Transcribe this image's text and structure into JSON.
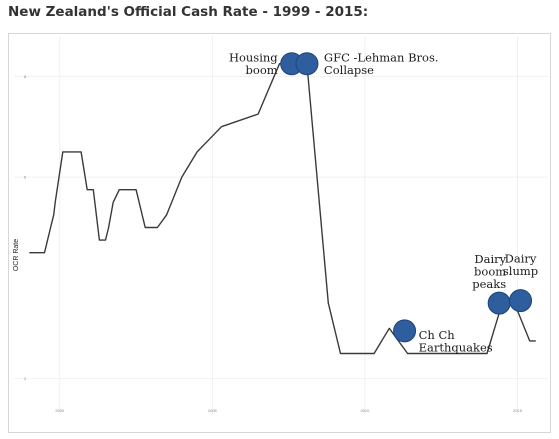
{
  "page": {
    "title": "New Zealand's Official Cash Rate - 1999 - 2015:"
  },
  "chart_data": {
    "type": "line",
    "title": "New Zealand's Official Cash Rate - 1999 - 2015:",
    "xlabel": "",
    "ylabel": "OCR Rate",
    "x_ticks": [
      {
        "value": 2000,
        "label": "2000"
      },
      {
        "value": 2005,
        "label": "2005"
      },
      {
        "value": 2010,
        "label": "2010"
      },
      {
        "value": 2015,
        "label": "2015"
      }
    ],
    "y_ticks": [
      {
        "value": 2,
        "label": "2"
      },
      {
        "value": 6,
        "label": "6"
      },
      {
        "value": 8,
        "label": "8"
      }
    ],
    "xlim": [
      1998.5,
      2016
    ],
    "ylim": [
      1.3,
      8.8
    ],
    "grid": true,
    "series": [
      {
        "color": "#3a3a3a",
        "points": [
          [
            1999.0,
            4.5
          ],
          [
            1999.5,
            4.5
          ],
          [
            1999.7,
            5.0
          ],
          [
            1999.8,
            5.25
          ],
          [
            1999.85,
            5.5
          ],
          [
            2000.1,
            6.5
          ],
          [
            2000.7,
            6.5
          ],
          [
            2000.9,
            5.75
          ],
          [
            2001.1,
            5.75
          ],
          [
            2001.3,
            4.75
          ],
          [
            2001.5,
            4.75
          ],
          [
            2001.6,
            5.0
          ],
          [
            2001.75,
            5.5
          ],
          [
            2001.95,
            5.75
          ],
          [
            2002.5,
            5.75
          ],
          [
            2002.8,
            5.0
          ],
          [
            2003.2,
            5.0
          ],
          [
            2003.5,
            5.25
          ],
          [
            2004.0,
            6.0
          ],
          [
            2004.5,
            6.5
          ],
          [
            2004.9,
            6.75
          ],
          [
            2005.3,
            7.0
          ],
          [
            2006.5,
            7.25
          ],
          [
            2007.2,
            8.25
          ],
          [
            2007.6,
            8.25
          ],
          [
            2008.1,
            8.25
          ],
          [
            2008.8,
            3.5
          ],
          [
            2009.2,
            2.5
          ],
          [
            2010.3,
            2.5
          ],
          [
            2010.8,
            3.0
          ],
          [
            2011.4,
            2.5
          ],
          [
            2014.0,
            2.5
          ],
          [
            2014.5,
            3.5
          ],
          [
            2014.9,
            3.5
          ],
          [
            2015.4,
            2.75
          ],
          [
            2015.6,
            2.75
          ]
        ]
      }
    ],
    "annotations": [
      {
        "lines": [
          "Housing",
          "boom"
        ],
        "x": 2007.6,
        "y": 8.25,
        "anchor": "end"
      },
      {
        "lines": [
          "GFC -Lehman Bros.",
          "Collapse"
        ],
        "x": 2008.1,
        "y": 8.25,
        "anchor": "start"
      },
      {
        "lines": [
          "Ch Ch",
          "Earthquakes"
        ],
        "x": 2011.3,
        "y": 2.95,
        "anchor": "start"
      },
      {
        "lines": [
          "Dairy",
          "boom",
          "peaks"
        ],
        "x": 2014.4,
        "y": 3.5,
        "anchor": "end"
      },
      {
        "lines": [
          "Dairy",
          "slump"
        ],
        "x": 2015.1,
        "y": 3.55,
        "anchor": "middle"
      }
    ],
    "marker_color": "#2e5e9e"
  }
}
